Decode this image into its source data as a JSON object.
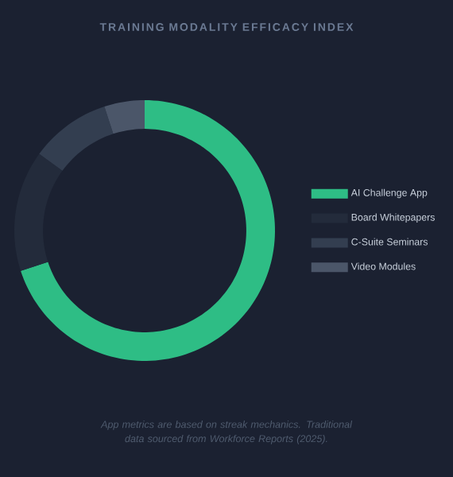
{
  "chart_data": {
    "type": "donut",
    "title": "TRAINING MODALITY EFFICACY INDEX",
    "categories": [
      "AI Challenge App",
      "Board Whitepapers",
      "C-Suite Seminars",
      "Video Modules"
    ],
    "values": [
      70,
      15,
      10,
      5
    ],
    "colors": [
      "#2ebd85",
      "#232b3b",
      "#333e50",
      "#4b5669"
    ],
    "legend": "right",
    "annotations": [
      "App metrics are based on streak mechanics. Traditional data sourced from Workforce Reports (2025)."
    ]
  }
}
